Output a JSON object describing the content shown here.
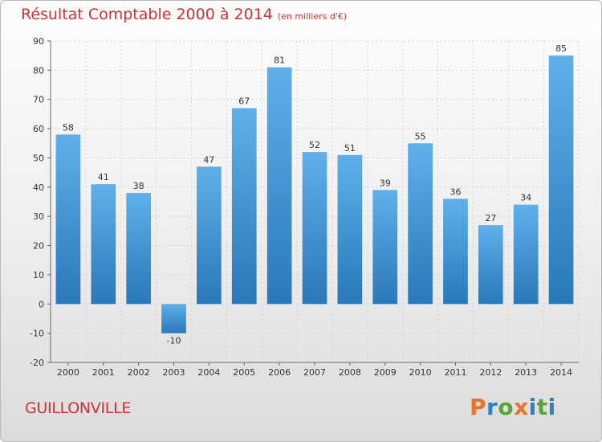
{
  "title": "Résultat Comptable 2000 à 2014",
  "unit_label": "(en milliers d'€)",
  "commune": "GUILLONVILLE",
  "logo_text": "Proxiti",
  "colors": {
    "title": "#cc3333",
    "bar_top": "#5fb0ea",
    "bar_bottom": "#2a78b8",
    "logo_letters": [
      "#e8732a",
      "#2f7fc8",
      "#5ca33c",
      "#e8732a",
      "#2f7fc8",
      "#5ca33c",
      "#2f7fc8"
    ]
  },
  "chart_data": {
    "type": "bar",
    "title": "Résultat Comptable 2000 à 2014",
    "ylabel": "en milliers d'€",
    "xlabel": "",
    "categories": [
      "2000",
      "2001",
      "2002",
      "2003",
      "2004",
      "2005",
      "2006",
      "2007",
      "2008",
      "2009",
      "2010",
      "2011",
      "2012",
      "2013",
      "2014"
    ],
    "values": [
      58,
      41,
      38,
      -10,
      47,
      67,
      81,
      52,
      51,
      39,
      55,
      36,
      27,
      34,
      85
    ],
    "ylim": [
      -20,
      90
    ],
    "yticks": [
      -20,
      -10,
      0,
      10,
      20,
      30,
      40,
      50,
      60,
      70,
      80,
      90
    ],
    "grid": true
  }
}
